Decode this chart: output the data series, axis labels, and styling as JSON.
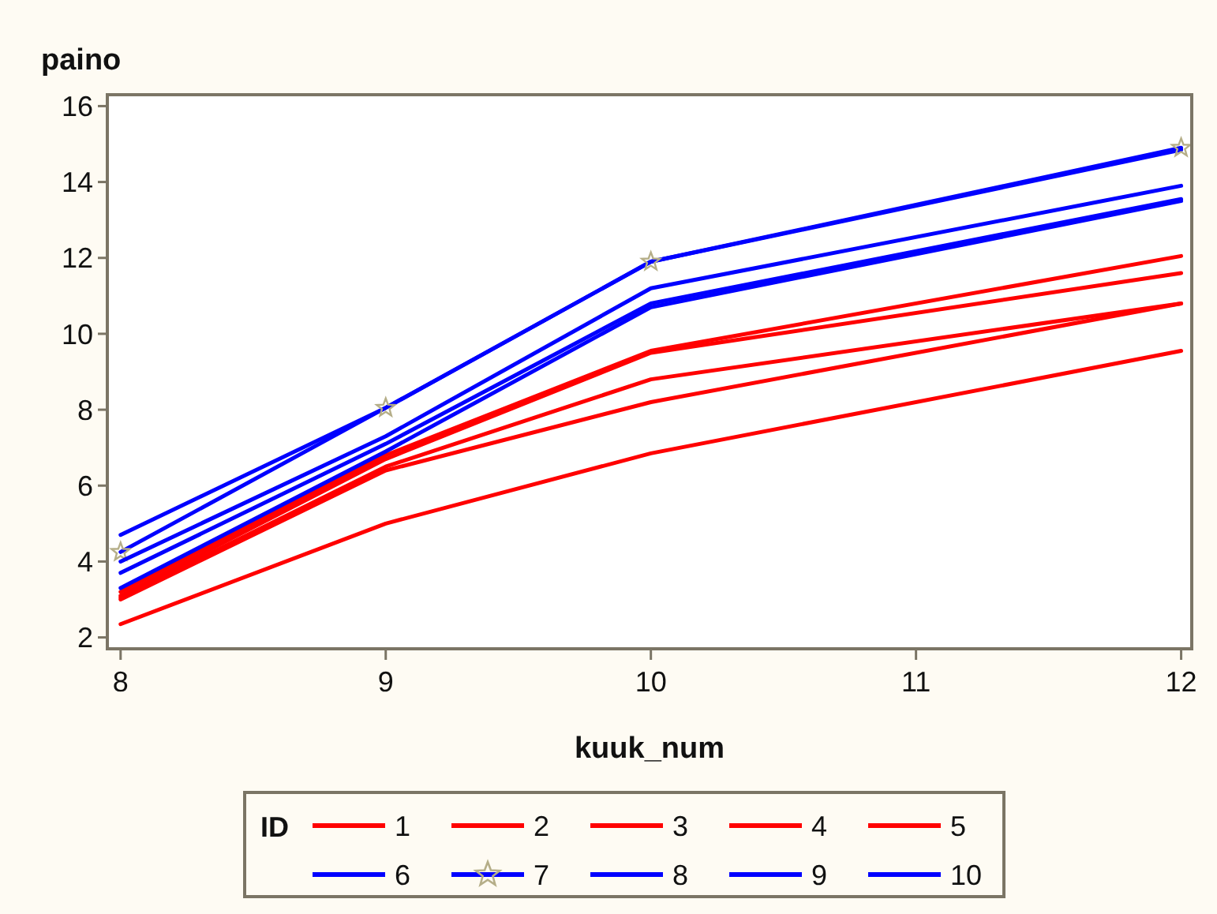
{
  "chart_data": {
    "type": "line",
    "xlabel": "kuuk_num",
    "ylabel": "paino",
    "legend_title": "ID",
    "x": [
      8,
      9,
      10,
      12
    ],
    "xlim": [
      7.95,
      12.04
    ],
    "xticks": [
      8,
      9,
      10,
      11,
      12
    ],
    "ylim": [
      1.7,
      16.3
    ],
    "yticks": [
      2,
      4,
      6,
      8,
      10,
      12,
      14,
      16
    ],
    "grid": false,
    "legend": "bottom",
    "line_style": "solid",
    "series": [
      {
        "name": "1",
        "color": "#ff0000",
        "values": [
          3.2,
          6.8,
          9.55,
          12.05
        ]
      },
      {
        "name": "2",
        "color": "#ff0000",
        "values": [
          3.1,
          6.7,
          9.5,
          11.6
        ]
      },
      {
        "name": "3",
        "color": "#ff0000",
        "values": [
          3.05,
          6.5,
          8.8,
          10.8
        ]
      },
      {
        "name": "4",
        "color": "#ff0000",
        "values": [
          3.0,
          6.4,
          8.2,
          10.8
        ]
      },
      {
        "name": "5",
        "color": "#ff0000",
        "values": [
          2.35,
          5.0,
          6.85,
          9.55
        ]
      },
      {
        "name": "6",
        "color": "#0000ff",
        "values": [
          4.7,
          8.05,
          11.9,
          14.85
        ]
      },
      {
        "name": "7",
        "color": "#0000ff",
        "marker": "star",
        "values": [
          4.25,
          8.05,
          11.9,
          14.9
        ]
      },
      {
        "name": "8",
        "color": "#0000ff",
        "values": [
          4.0,
          7.3,
          11.2,
          13.9
        ]
      },
      {
        "name": "9",
        "color": "#0000ff",
        "values": [
          3.7,
          7.1,
          10.8,
          13.55
        ]
      },
      {
        "name": "10",
        "color": "#0000ff",
        "values": [
          3.3,
          6.9,
          10.7,
          13.5
        ]
      }
    ]
  }
}
